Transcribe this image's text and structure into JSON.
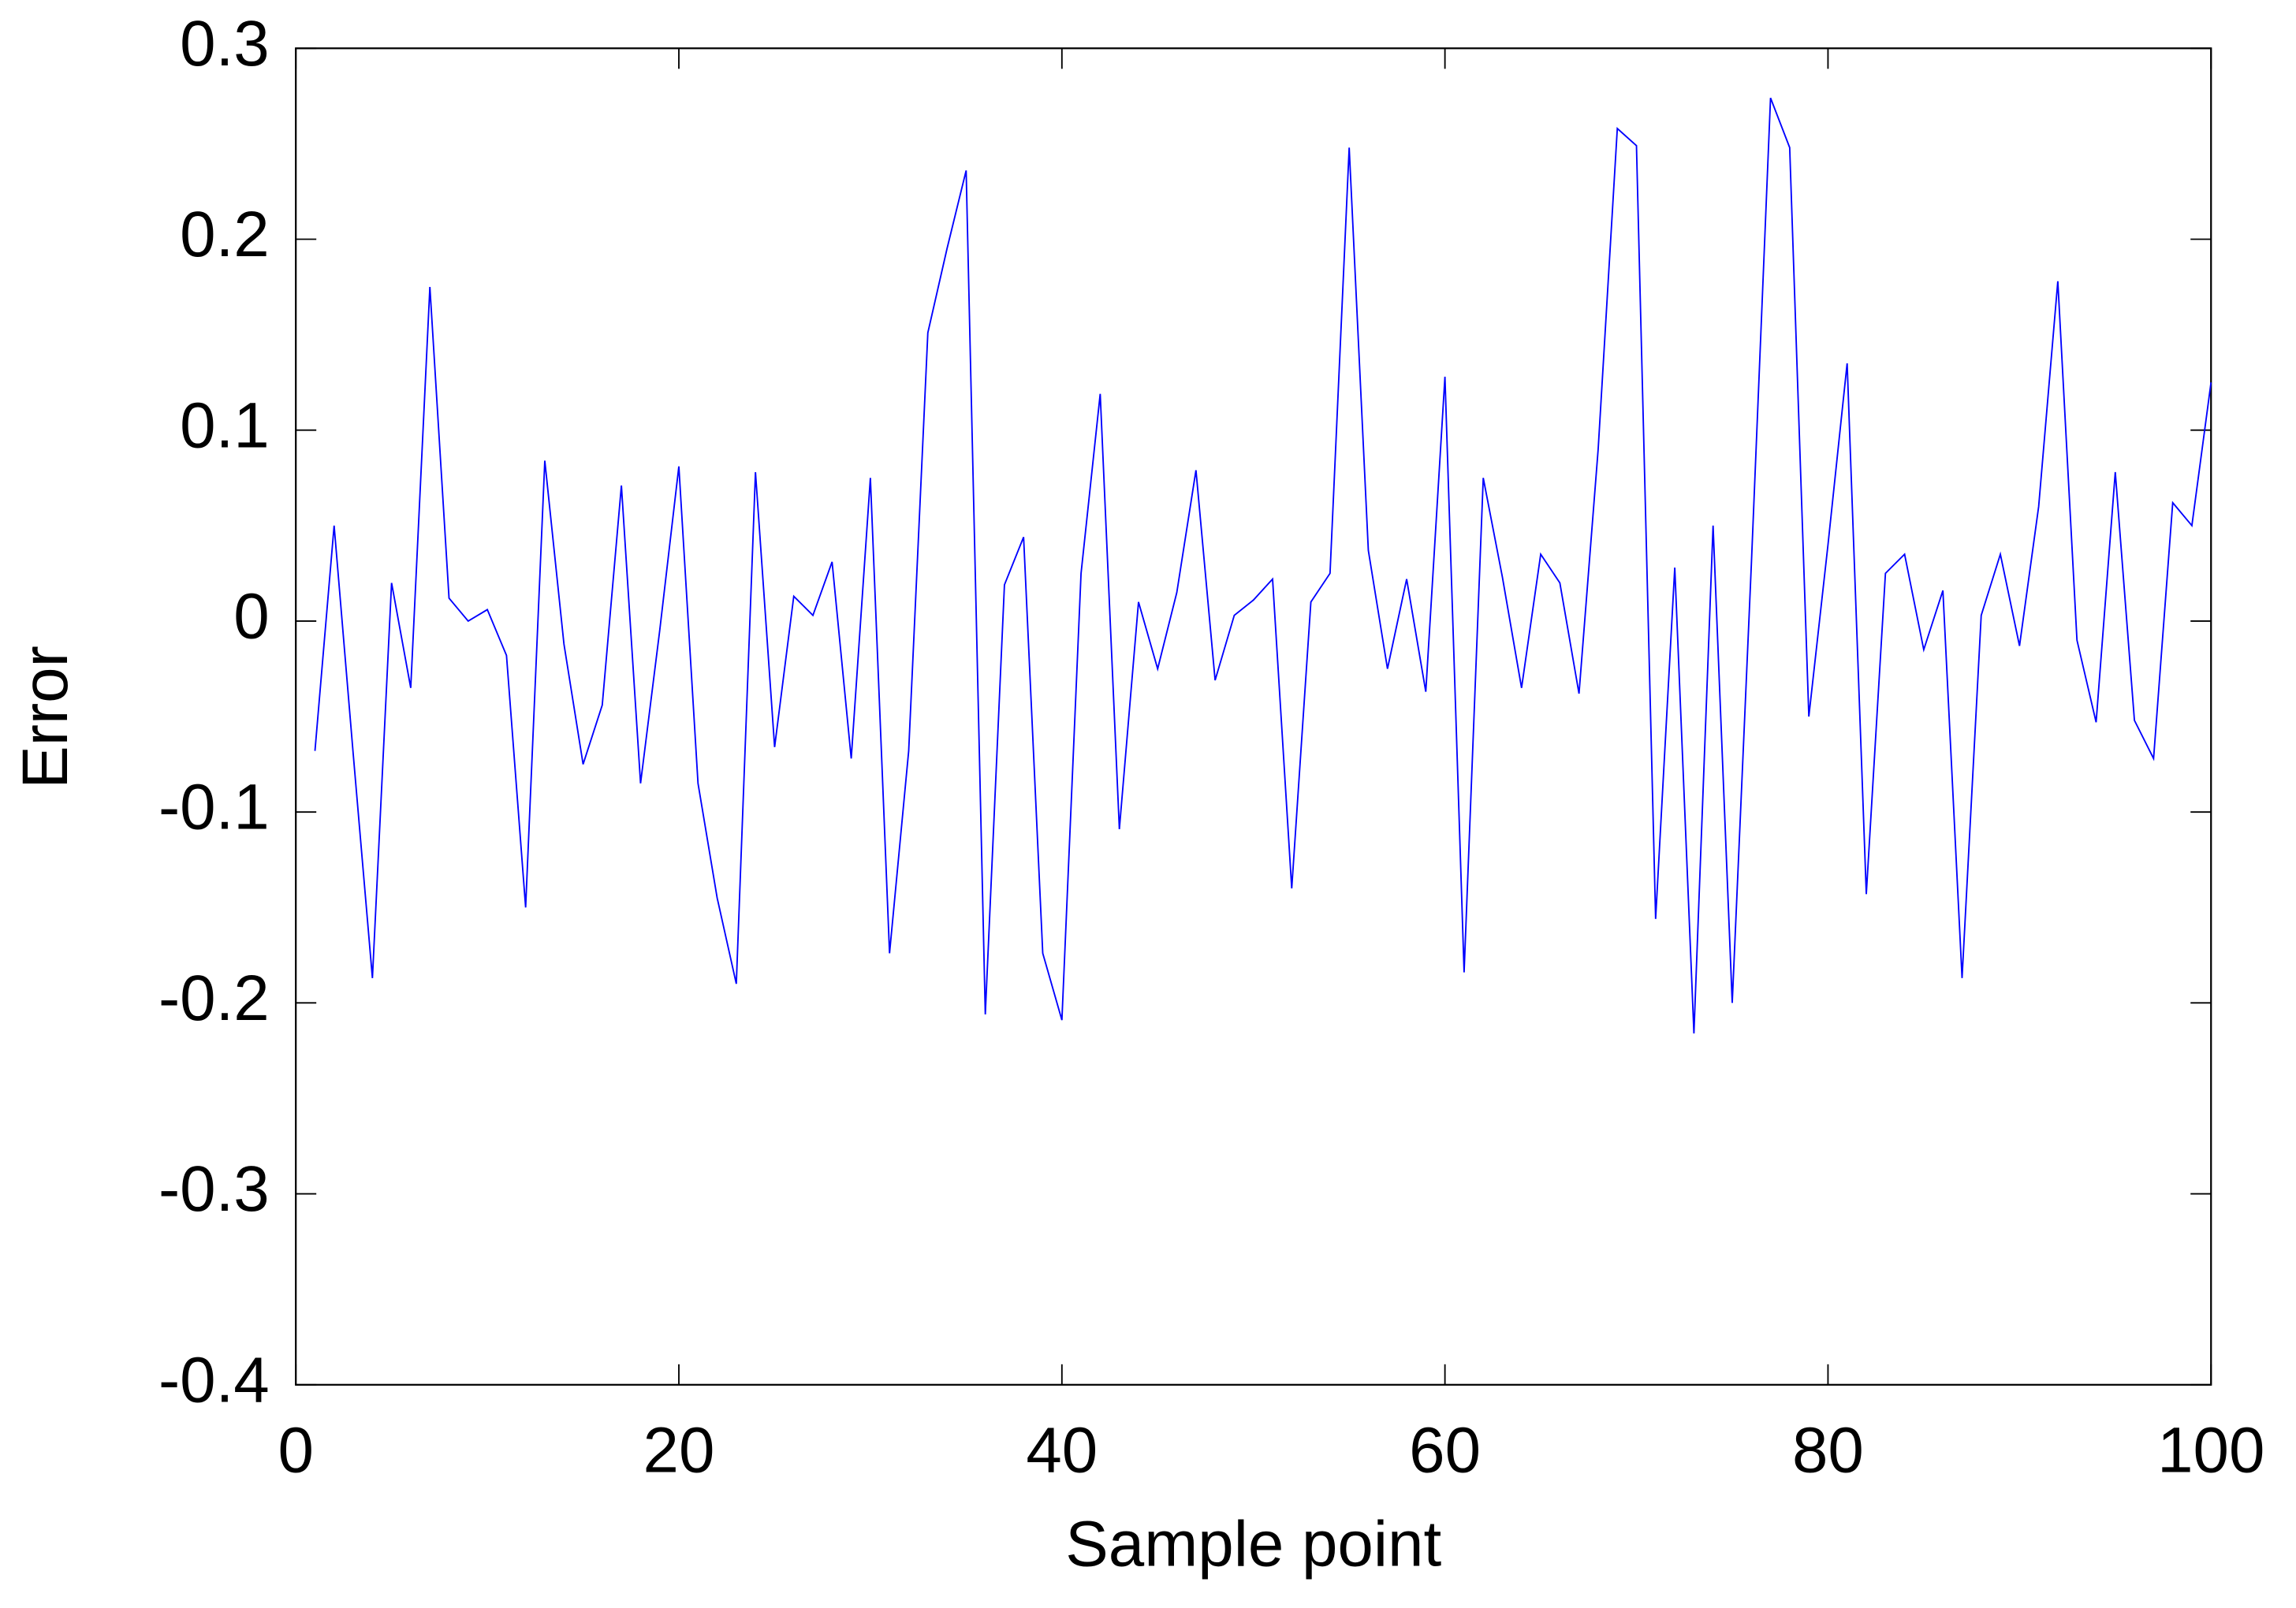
{
  "chart_data": {
    "type": "line",
    "x_label": "Sample point",
    "y_label": "Error",
    "x": [
      1,
      2,
      3,
      4,
      5,
      6,
      7,
      8,
      9,
      10,
      11,
      12,
      13,
      14,
      15,
      16,
      17,
      18,
      19,
      20,
      21,
      22,
      23,
      24,
      25,
      26,
      27,
      28,
      29,
      30,
      31,
      32,
      33,
      34,
      35,
      36,
      37,
      38,
      39,
      40,
      41,
      42,
      43,
      44,
      45,
      46,
      47,
      48,
      49,
      50,
      51,
      52,
      53,
      54,
      55,
      56,
      57,
      58,
      59,
      60,
      61,
      62,
      63,
      64,
      65,
      66,
      67,
      68,
      69,
      70,
      71,
      72,
      73,
      74,
      75,
      76,
      77,
      78,
      79,
      80,
      81,
      82,
      83,
      84,
      85,
      86,
      87,
      88,
      89,
      90,
      91,
      92,
      93,
      94,
      95,
      96,
      97,
      98,
      99,
      100
    ],
    "series": [
      {
        "color": "#0000ff",
        "values": [
          -0.068,
          0.05,
          -0.07,
          -0.187,
          0.02,
          -0.035,
          0.175,
          0.012,
          0.0,
          0.006,
          -0.018,
          -0.15,
          0.084,
          -0.012,
          -0.075,
          -0.044,
          0.071,
          -0.085,
          -0.005,
          0.081,
          -0.085,
          -0.145,
          -0.19,
          0.078,
          -0.066,
          0.013,
          0.003,
          0.031,
          -0.072,
          0.075,
          -0.174,
          -0.068,
          0.151,
          0.195,
          0.236,
          -0.206,
          0.019,
          0.044,
          -0.174,
          -0.209,
          0.025,
          0.119,
          -0.109,
          0.01,
          -0.025,
          0.015,
          0.079,
          -0.031,
          0.003,
          0.011,
          0.022,
          -0.14,
          0.01,
          0.025,
          0.248,
          0.037,
          -0.025,
          0.022,
          -0.037,
          0.128,
          -0.184,
          0.075,
          0.023,
          -0.035,
          0.035,
          0.02,
          -0.038,
          0.09,
          0.258,
          0.249,
          -0.156,
          0.028,
          -0.216,
          0.05,
          -0.2,
          0.03,
          0.274,
          0.248,
          -0.05,
          0.04,
          0.135,
          -0.143,
          0.025,
          0.035,
          -0.015,
          0.016,
          -0.187,
          0.003,
          0.035,
          -0.013,
          0.06,
          0.178,
          -0.01,
          -0.053,
          0.078,
          -0.052,
          -0.072,
          0.062,
          0.05,
          0.125
        ]
      }
    ],
    "xlim": [
      0,
      100
    ],
    "xticks": [
      0,
      20,
      40,
      60,
      80,
      100
    ],
    "ylim": [
      -0.4,
      0.3
    ],
    "yticks": [
      -0.4,
      -0.3,
      -0.2,
      -0.1,
      0,
      0.1,
      0.2,
      0.3
    ]
  }
}
